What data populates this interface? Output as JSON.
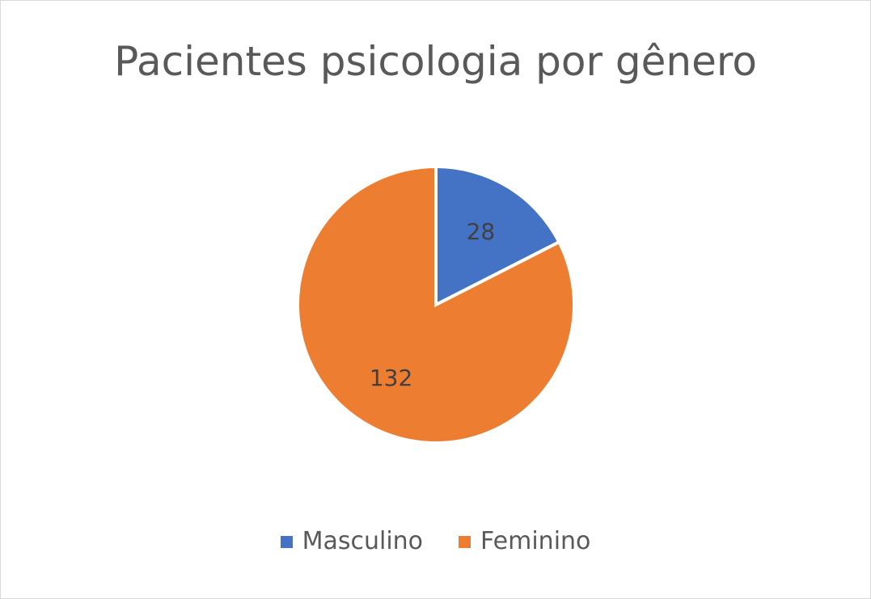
{
  "chart_data": {
    "type": "pie",
    "title": "Pacientes psicologia por gênero",
    "categories": [
      "Masculino",
      "Feminino"
    ],
    "values": [
      28,
      132
    ],
    "data_labels": [
      "28",
      "132"
    ],
    "colors": [
      "#4472C4",
      "#ED7D31"
    ],
    "legend_position": "bottom",
    "start_angle": "12 o'clock",
    "direction": "clockwise"
  }
}
